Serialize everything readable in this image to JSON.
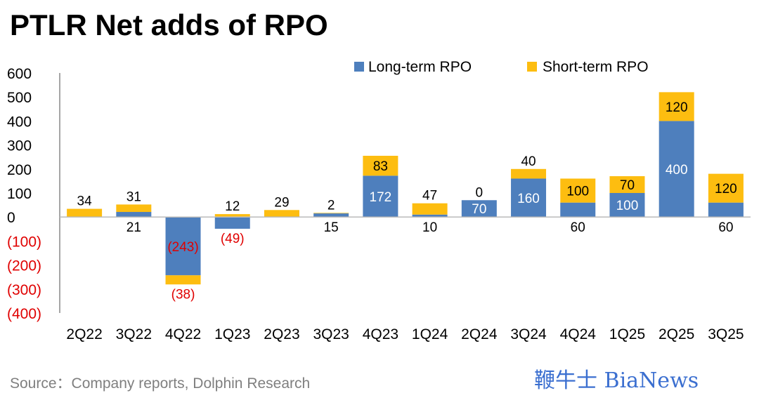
{
  "chart_data": {
    "type": "bar",
    "stacked": true,
    "title": "PTLR Net adds of RPO",
    "source": "Source：Company reports, Dolphin Research",
    "categories": [
      "2Q22",
      "3Q22",
      "4Q22",
      "1Q23",
      "2Q23",
      "3Q23",
      "4Q23",
      "1Q24",
      "2Q24",
      "3Q24",
      "4Q24",
      "1Q25",
      "2Q25",
      "3Q25"
    ],
    "series": [
      {
        "name": "Long-term RPO",
        "color": "#4e7fbd",
        "values": [
          0,
          21,
          -243,
          -49,
          0,
          15,
          172,
          10,
          70,
          160,
          60,
          100,
          400,
          60
        ],
        "labels": [
          "",
          "21",
          "(243)",
          "(49)",
          "",
          "15",
          "172",
          "10",
          "70",
          "160",
          "60",
          "100",
          "400",
          "60"
        ]
      },
      {
        "name": "Short-term RPO",
        "color": "#fdbd10",
        "values": [
          34,
          31,
          -38,
          12,
          29,
          2,
          83,
          47,
          0,
          40,
          100,
          70,
          120,
          120
        ],
        "labels": [
          "34",
          "31",
          "(38)",
          "12",
          "29",
          "2",
          "83",
          "47",
          "0",
          "40",
          "100",
          "70",
          "120",
          "120"
        ]
      }
    ],
    "ylim": [
      -400,
      600
    ],
    "yticks": [
      600,
      500,
      400,
      300,
      200,
      100,
      0,
      -100,
      -200,
      -300,
      -400
    ],
    "ytick_labels": [
      "600",
      "500",
      "400",
      "300",
      "200",
      "100",
      "0",
      "(100)",
      "(200)",
      "(300)",
      "(400)"
    ],
    "legend": "top-right",
    "negative_color": "#e00000",
    "watermark": "DolphinResearch",
    "logo_text": "鞭牛士 BiaNews"
  }
}
